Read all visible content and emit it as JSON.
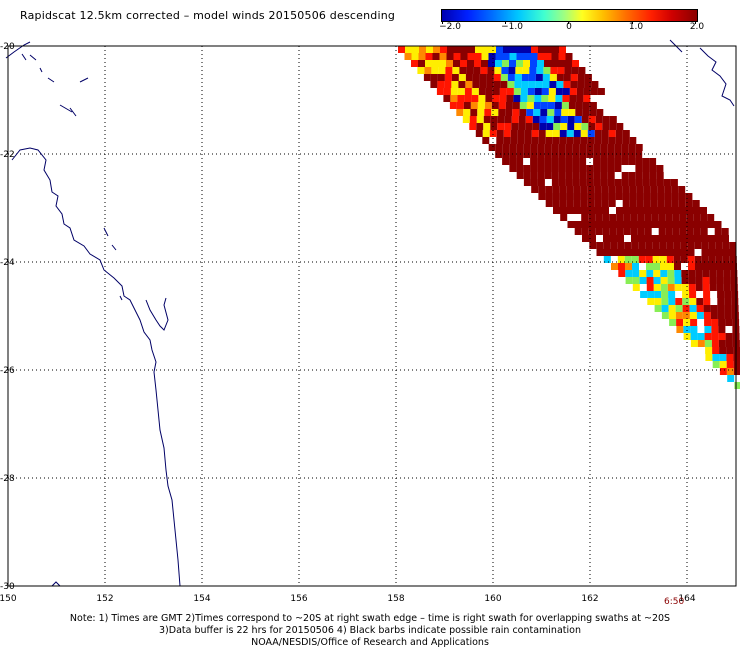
{
  "title": "Rapidscat 12.5km corrected – model winds 20150506 descending",
  "colorbar": {
    "ticks": [
      "−2.0",
      "−1.0",
      "0",
      "1.0",
      "2.0"
    ],
    "range": [
      -2.0,
      2.0
    ]
  },
  "map": {
    "lon_labels": [
      "150",
      "152",
      "154",
      "156",
      "158",
      "160",
      "162",
      "164"
    ],
    "lat_labels": [
      "-20",
      "-22",
      "-24",
      "-26",
      "-28",
      "-30"
    ],
    "lon_range": [
      150,
      165
    ],
    "lat_range": [
      -30,
      -20
    ],
    "grid": "dotted",
    "coast_color": "#000066",
    "swath_time": "6:50"
  },
  "notes": [
    "Note: 1) Times are GMT 2)Times correspond to ~20S at right swath edge – time is right swath for overlapping swaths at ~20S",
    "3)Data buffer is 22 hrs for 20150506 4) Black barbs indicate possible rain contamination",
    "NOAA/NESDIS/Office of Research and Applications"
  ],
  "colors": {
    "dark_red": "#8a0000",
    "red": "#ff1500",
    "orange": "#ff8800",
    "yellow": "#ffee00",
    "green": "#88ee55",
    "cyan": "#00ccff",
    "blue": "#0044ff",
    "navy": "#0000aa"
  }
}
